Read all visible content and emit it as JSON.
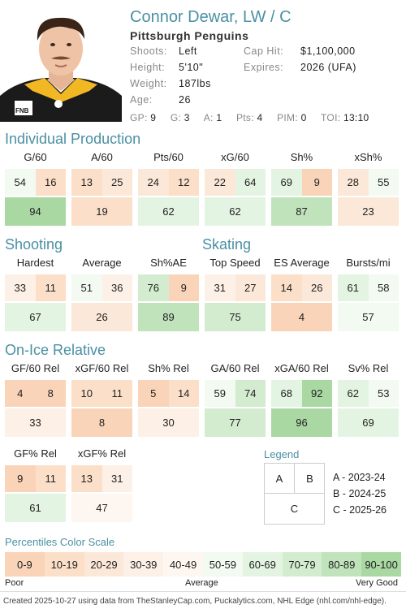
{
  "player": {
    "name": "Connor Dewar, LW / C",
    "team": "Pittsburgh Penguins",
    "shoots_label": "Shoots:",
    "shoots": "Left",
    "height_label": "Height:",
    "height": "5'10\"",
    "weight_label": "Weight:",
    "weight": "187lbs",
    "age_label": "Age:",
    "age": "26",
    "caphit_label": "Cap Hit:",
    "caphit": "$1,100,000",
    "expires_label": "Expires:",
    "expires": "2026 (UFA)",
    "gp_label": "GP:",
    "gp": "9",
    "g_label": "G:",
    "g": "3",
    "a_label": "A:",
    "a": "1",
    "pts_label": "Pts:",
    "pts": "4",
    "pim_label": "PIM:",
    "pim": "0",
    "toi_label": "TOI:",
    "toi": "13:10",
    "jersey_text": "FNB"
  },
  "sections": {
    "individual": "Individual Production",
    "shooting": "Shooting",
    "skating": "Skating",
    "onice": "On-Ice Relative"
  },
  "metrics": [
    {
      "title": "G/60",
      "a": 54,
      "b": 16,
      "c": 94
    },
    {
      "title": "A/60",
      "a": 13,
      "b": 25,
      "c": 19
    },
    {
      "title": "Pts/60",
      "a": 24,
      "b": 12,
      "c": 62
    },
    {
      "title": "xG/60",
      "a": 22,
      "b": 64,
      "c": 62
    },
    {
      "title": "Sh%",
      "a": 69,
      "b": 9,
      "c": 87
    },
    {
      "title": "xSh%",
      "a": 28,
      "b": 55,
      "c": 23
    },
    {
      "title": "Hardest",
      "a": 33,
      "b": 11,
      "c": 67
    },
    {
      "title": "Average",
      "a": 51,
      "b": 36,
      "c": 26
    },
    {
      "title": "Sh%AE",
      "a": 76,
      "b": 9,
      "c": 89
    },
    {
      "title": "Top Speed",
      "a": 31,
      "b": 27,
      "c": 75
    },
    {
      "title": "ES Average",
      "a": 14,
      "b": 26,
      "c": 4
    },
    {
      "title": "Bursts/mi",
      "a": 61,
      "b": 58,
      "c": 57
    },
    {
      "title": "GF/60 Rel",
      "a": 4,
      "b": 8,
      "c": 33
    },
    {
      "title": "xGF/60 Rel",
      "a": 10,
      "b": 11,
      "c": 8
    },
    {
      "title": "Sh% Rel",
      "a": 5,
      "b": 14,
      "c": 30
    },
    {
      "title": "GA/60 Rel",
      "a": 59,
      "b": 74,
      "c": 77
    },
    {
      "title": "xGA/60 Rel",
      "a": 68,
      "b": 92,
      "c": 96
    },
    {
      "title": "Sv% Rel",
      "a": 62,
      "b": 53,
      "c": 69
    },
    {
      "title": "GF% Rel",
      "a": 9,
      "b": 11,
      "c": 61
    },
    {
      "title": "xGF% Rel",
      "a": 13,
      "b": 31,
      "c": 47
    }
  ],
  "legend": {
    "title": "Legend",
    "a": "A",
    "b": "B",
    "c": "C",
    "a_text": "A - 2023-24",
    "b_text": "B - 2024-25",
    "c_text": "C - 2025-26"
  },
  "scale": {
    "title": "Percentiles Color Scale",
    "bins": [
      "0-9",
      "10-19",
      "20-29",
      "30-39",
      "40-49",
      "50-59",
      "60-69",
      "70-79",
      "80-89",
      "90-100"
    ],
    "colors": [
      "#f9d4b8",
      "#fbdfc8",
      "#fce8d8",
      "#fdf0e6",
      "#fef7f1",
      "#f2faf1",
      "#e4f4e2",
      "#d3ecd0",
      "#c0e3bc",
      "#a9d8a3"
    ],
    "poor": "Poor",
    "average": "Average",
    "very_good": "Very Good"
  },
  "footer": "Created 2025-10-27 using data from TheStanleyCap.com, Puckalytics.com, NHL Edge (nhl.com/nhl-edge)."
}
